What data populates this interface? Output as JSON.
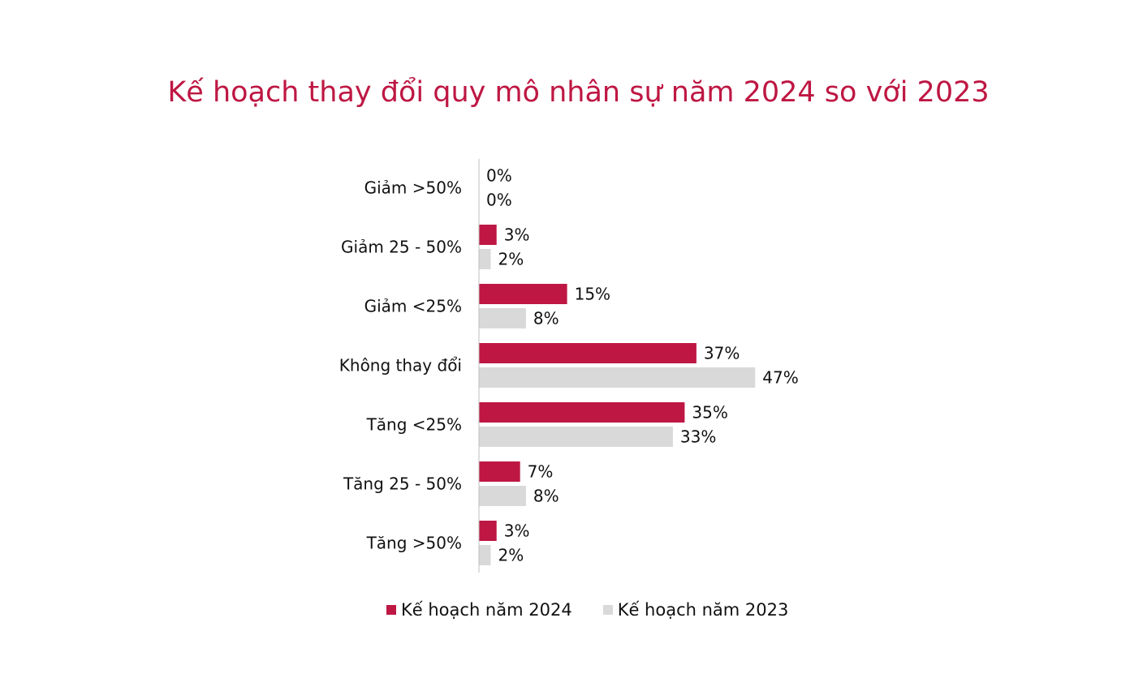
{
  "chart_data": {
    "type": "bar",
    "orientation": "horizontal",
    "title": "Kế hoạch thay đổi quy mô nhân sự năm 2024 so với 2023",
    "categories": [
      "Giảm >50%",
      "Giảm 25 - 50%",
      "Giảm <25%",
      "Không thay đổi",
      "Tăng <25%",
      "Tăng 25 - 50%",
      "Tăng >50%"
    ],
    "series": [
      {
        "name": "Kế hoạch năm 2024",
        "color": "#be1743",
        "values": [
          0,
          3,
          15,
          37,
          35,
          7,
          3
        ],
        "labels": [
          "0%",
          "3%",
          "15%",
          "37%",
          "35%",
          "7%",
          "3%"
        ]
      },
      {
        "name": "Kế hoạch năm 2023",
        "color": "#d9d9d9",
        "values": [
          0,
          2,
          8,
          47,
          33,
          8,
          2
        ],
        "labels": [
          "0%",
          "2%",
          "8%",
          "47%",
          "33%",
          "8%",
          "2%"
        ]
      }
    ],
    "xlim": [
      0,
      50
    ],
    "value_unit": "%",
    "grid": false,
    "legend_position": "bottom"
  }
}
